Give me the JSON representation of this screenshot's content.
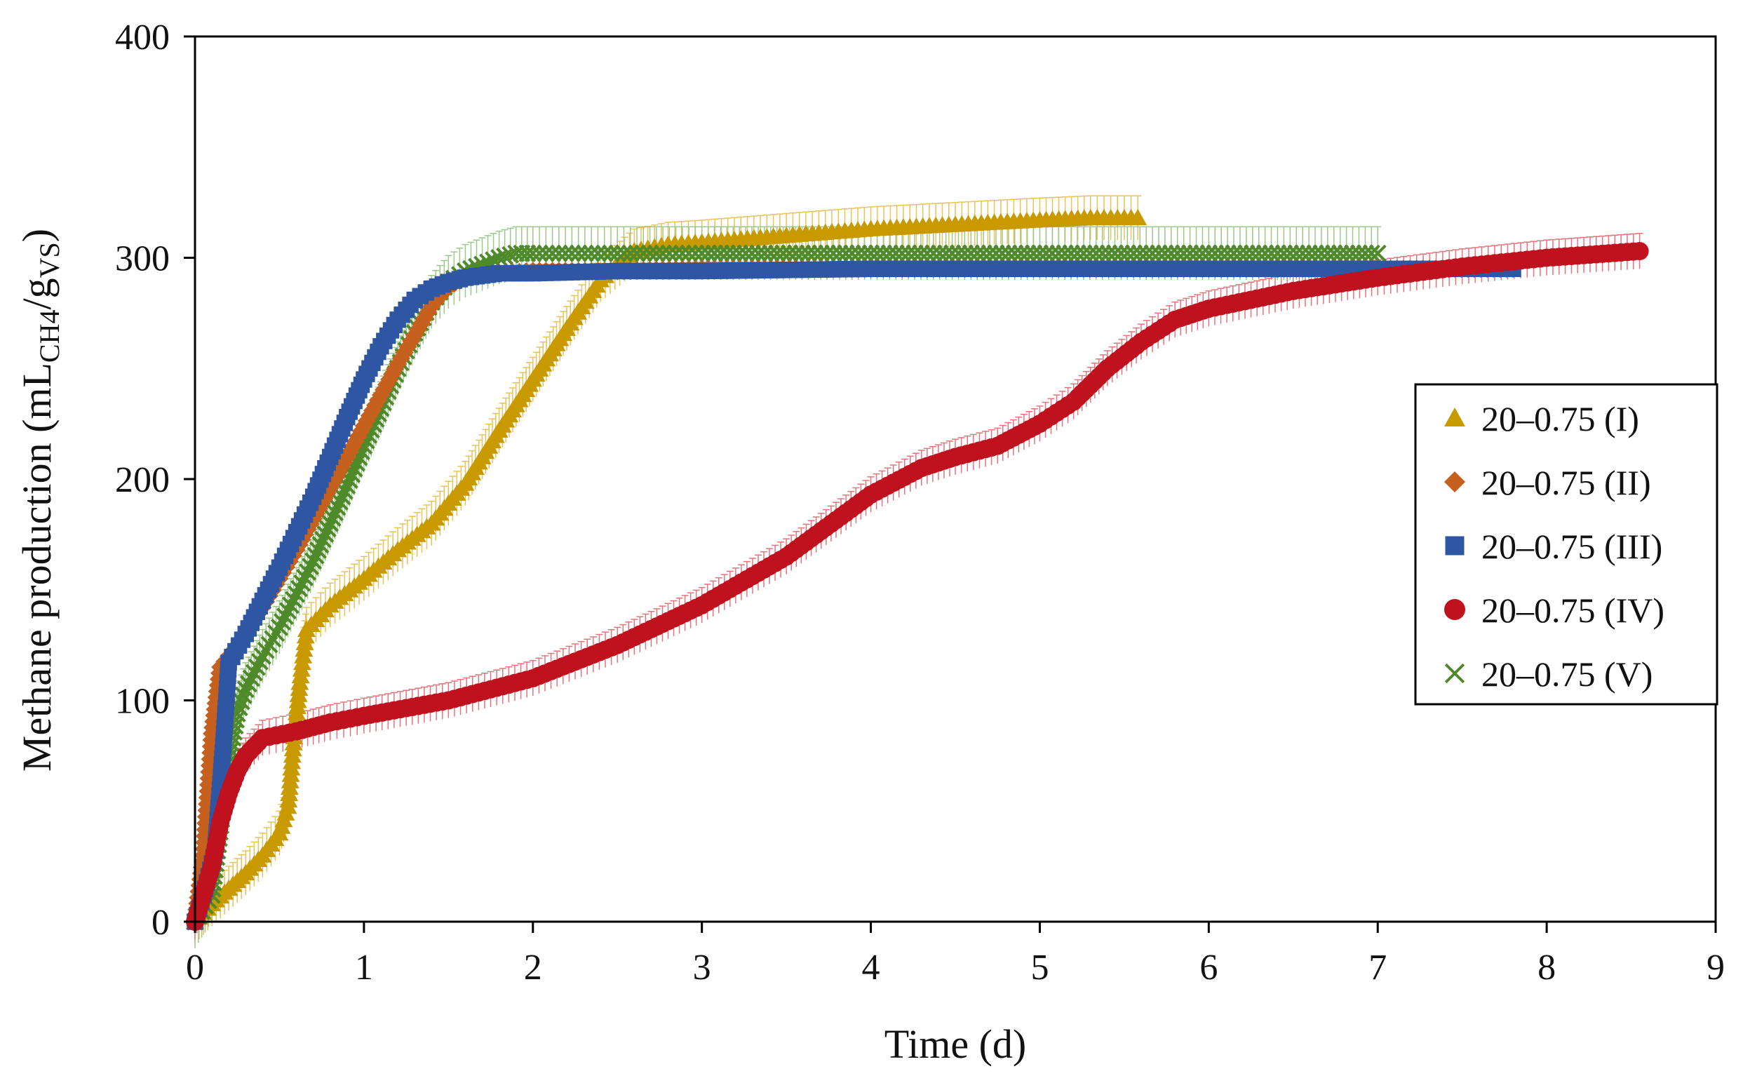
{
  "chart_data": {
    "type": "scatter",
    "title": "",
    "xlabel": "Time (d)",
    "ylabel_main": "Methane production (mL",
    "ylabel_sub1": "CH4",
    "ylabel_mid": "/g",
    "ylabel_sub2": "VS",
    "ylabel_end": ")",
    "xlim": [
      0,
      9
    ],
    "ylim": [
      0,
      400
    ],
    "xticks": [
      0,
      1,
      2,
      3,
      4,
      5,
      6,
      7,
      8,
      9
    ],
    "yticks": [
      0,
      100,
      200,
      300,
      400
    ],
    "grid": false,
    "legend_position": "right",
    "series": [
      {
        "name": "20–0.75 (I)",
        "marker": "triangle",
        "color": "#C89A00",
        "errorbar_color": "#E7C35A",
        "error": 10,
        "x": [
          0,
          0.1,
          0.2,
          0.3,
          0.4,
          0.5,
          0.55,
          0.58,
          0.62,
          0.66,
          0.8,
          1.0,
          1.2,
          1.4,
          1.6,
          1.8,
          2.0,
          2.2,
          2.4,
          2.6,
          2.8,
          3.0,
          3.5,
          4.0,
          4.5,
          5.0,
          5.3,
          5.58
        ],
        "y": [
          0,
          8,
          15,
          22,
          30,
          40,
          52,
          78,
          108,
          132,
          143,
          155,
          168,
          180,
          198,
          222,
          245,
          268,
          290,
          303,
          306,
          307,
          310,
          313,
          315,
          317,
          318,
          318
        ]
      },
      {
        "name": "20–0.75 (II)",
        "marker": "diamond",
        "color": "#C5601F",
        "errorbar_color": "#E49A66",
        "error": 3,
        "x": [
          0,
          0.05,
          0.1,
          0.15,
          0.2,
          0.3,
          0.4,
          0.5,
          0.6,
          0.7,
          0.8,
          0.9,
          1.0,
          1.1,
          1.2,
          1.3,
          1.4,
          1.5,
          1.6,
          1.7,
          1.8,
          2.0,
          2.5,
          3.0,
          4.0,
          5.0,
          6.0,
          7.0,
          7.8
        ],
        "y": [
          0,
          30,
          85,
          115,
          120,
          130,
          142,
          155,
          168,
          182,
          196,
          210,
          224,
          238,
          252,
          265,
          278,
          287,
          291,
          292,
          293,
          294,
          294,
          295,
          295,
          295,
          295,
          295,
          295
        ]
      },
      {
        "name": "20–0.75 (III)",
        "marker": "square",
        "color": "#2E56A3",
        "errorbar_color": "#7D9AD0",
        "error": 3,
        "x": [
          0,
          0.05,
          0.12,
          0.17,
          0.2,
          0.3,
          0.4,
          0.5,
          0.6,
          0.7,
          0.8,
          0.9,
          1.0,
          1.1,
          1.2,
          1.3,
          1.4,
          1.5,
          1.6,
          1.7,
          1.8,
          2.0,
          2.5,
          3.0,
          4.0,
          5.0,
          6.0,
          7.0,
          7.8
        ],
        "y": [
          0,
          12,
          32,
          82,
          117,
          130,
          145,
          160,
          176,
          192,
          210,
          228,
          245,
          260,
          272,
          281,
          286,
          289,
          291,
          292,
          293,
          293,
          294,
          294,
          295,
          295,
          295,
          295,
          295
        ]
      },
      {
        "name": "20–0.75 (IV)",
        "marker": "circle",
        "color": "#C0111E",
        "errorbar_color": "#E5737B",
        "error": 8,
        "x": [
          0,
          0.1,
          0.15,
          0.2,
          0.25,
          0.3,
          0.4,
          0.6,
          0.8,
          1.0,
          1.5,
          2.0,
          2.5,
          3.0,
          3.5,
          4.0,
          4.3,
          4.5,
          4.75,
          5.0,
          5.2,
          5.4,
          5.6,
          5.8,
          6.0,
          6.5,
          7.0,
          7.5,
          8.0,
          8.55
        ],
        "y": [
          0,
          25,
          45,
          58,
          68,
          75,
          83,
          86,
          90,
          93,
          100,
          110,
          125,
          143,
          165,
          193,
          205,
          210,
          215,
          225,
          235,
          250,
          262,
          272,
          277,
          285,
          291,
          296,
          300,
          303
        ]
      },
      {
        "name": "20–0.75 (V)",
        "marker": "x",
        "color": "#4E8A2A",
        "errorbar_color": "#9CC78A",
        "error": 12,
        "x": [
          0,
          0.1,
          0.2,
          0.25,
          0.3,
          0.4,
          0.5,
          0.6,
          0.7,
          0.8,
          0.9,
          1.0,
          1.1,
          1.2,
          1.3,
          1.4,
          1.5,
          1.6,
          1.7,
          1.8,
          1.9,
          2.0,
          2.5,
          3.0,
          4.0,
          5.0,
          6.0,
          7.0
        ],
        "y": [
          0,
          12,
          72,
          94,
          105,
          120,
          133,
          148,
          163,
          180,
          197,
          215,
          232,
          250,
          266,
          280,
          289,
          294,
          297,
          300,
          302,
          302,
          302,
          302,
          302,
          302,
          302,
          302
        ]
      }
    ]
  }
}
